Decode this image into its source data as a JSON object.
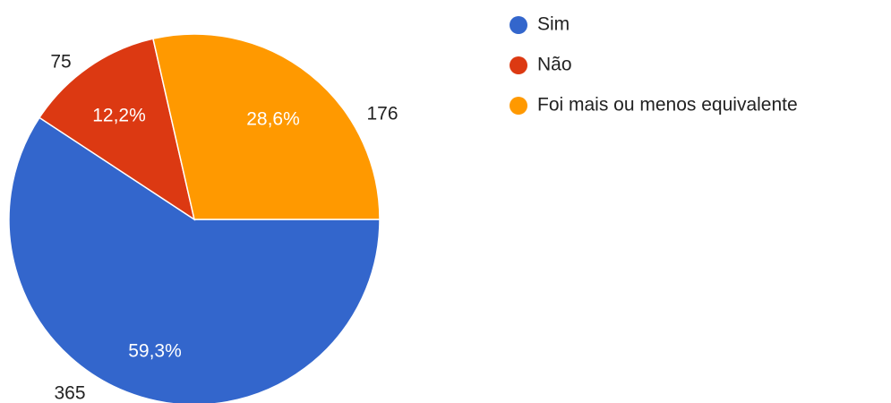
{
  "chart_data": {
    "type": "pie",
    "categories": [
      "Sim",
      "Não",
      "Foi mais ou menos equivalente"
    ],
    "values": [
      365,
      75,
      176
    ],
    "percent_values": [
      59.3,
      12.2,
      28.6
    ],
    "percent_labels": [
      "59,3%",
      "12,2%",
      "28,6%"
    ],
    "colors": [
      "#3366cc",
      "#dc3912",
      "#ff9900"
    ],
    "legend": "right"
  }
}
